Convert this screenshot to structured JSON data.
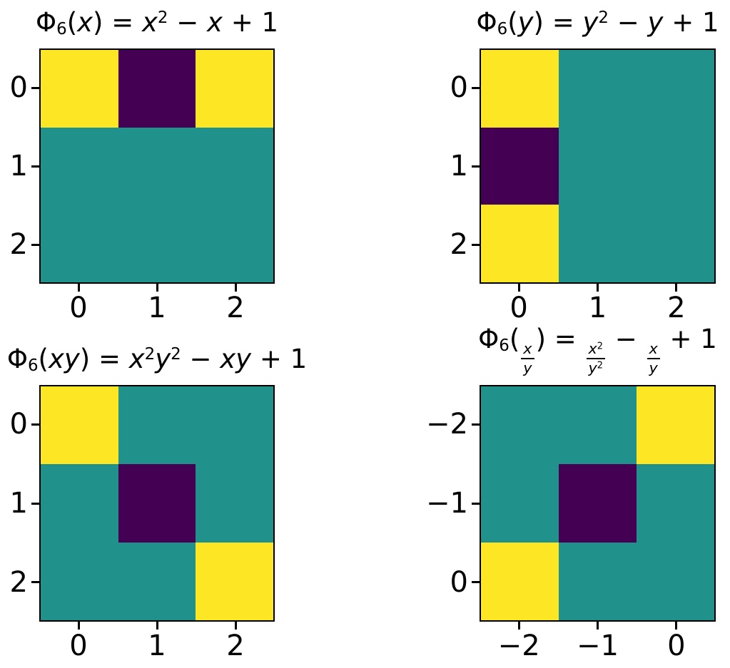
{
  "figure": {
    "background": "#ffffff",
    "encoding": "3x3 heatmaps; cell level 0 = dark purple, 1 = teal, 2 = yellow; value rows listed top-to-bottom, left-to-right",
    "colormap": {
      "name": "viridis (3 levels)",
      "level_colors": [
        "#440154",
        "#21918c",
        "#fde725"
      ]
    },
    "layout": {
      "rows": 2,
      "cols": 2
    }
  },
  "chart_data": [
    {
      "type": "heatmap",
      "title": "Φ₆(x) = x² − x + 1",
      "title_rich": [
        {
          "t": "Φ"
        },
        {
          "t": "6",
          "sub": true
        },
        {
          "t": "("
        },
        {
          "t": "x",
          "it": true
        },
        {
          "t": ")"
        },
        {
          "t": " = "
        },
        {
          "t": "x",
          "it": true
        },
        {
          "t": "2",
          "sup": true
        },
        {
          "t": " − "
        },
        {
          "t": "x",
          "it": true
        },
        {
          "t": " + 1"
        }
      ],
      "xtick_labels": [
        "0",
        "1",
        "2"
      ],
      "ytick_labels": [
        "0",
        "1",
        "2"
      ],
      "values": [
        [
          2,
          0,
          2
        ],
        [
          1,
          1,
          1
        ],
        [
          1,
          1,
          1
        ]
      ],
      "grid": "off",
      "legend": "none"
    },
    {
      "type": "heatmap",
      "title": "Φ₆(y) = y² − y + 1",
      "title_rich": [
        {
          "t": "Φ"
        },
        {
          "t": "6",
          "sub": true
        },
        {
          "t": "("
        },
        {
          "t": "y",
          "it": true
        },
        {
          "t": ")"
        },
        {
          "t": " = "
        },
        {
          "t": "y",
          "it": true
        },
        {
          "t": "2",
          "sup": true
        },
        {
          "t": " − "
        },
        {
          "t": "y",
          "it": true
        },
        {
          "t": " + 1"
        }
      ],
      "xtick_labels": [
        "0",
        "1",
        "2"
      ],
      "ytick_labels": [
        "0",
        "1",
        "2"
      ],
      "values": [
        [
          2,
          1,
          1
        ],
        [
          0,
          1,
          1
        ],
        [
          2,
          1,
          1
        ]
      ],
      "grid": "off",
      "legend": "none"
    },
    {
      "type": "heatmap",
      "title": "Φ₆(xy) = x²y² − xy + 1",
      "title_rich": [
        {
          "t": "Φ"
        },
        {
          "t": "6",
          "sub": true
        },
        {
          "t": "("
        },
        {
          "t": "xy",
          "it": true
        },
        {
          "t": ")"
        },
        {
          "t": " = "
        },
        {
          "t": "x",
          "it": true
        },
        {
          "t": "2",
          "sup": true
        },
        {
          "t": "y",
          "it": true
        },
        {
          "t": "2",
          "sup": true
        },
        {
          "t": " − "
        },
        {
          "t": "xy",
          "it": true
        },
        {
          "t": " + 1"
        }
      ],
      "xtick_labels": [
        "0",
        "1",
        "2"
      ],
      "ytick_labels": [
        "0",
        "1",
        "2"
      ],
      "values": [
        [
          2,
          1,
          1
        ],
        [
          1,
          0,
          1
        ],
        [
          1,
          1,
          2
        ]
      ],
      "grid": "off",
      "legend": "none"
    },
    {
      "type": "heatmap",
      "title": "Φ₆(x/y) = x²/y² − x/y + 1",
      "title_rich": [
        {
          "t": "Φ"
        },
        {
          "t": "6",
          "sub": true
        },
        {
          "t": "("
        },
        {
          "frac": {
            "num": [
              {
                "t": "x",
                "it": true
              }
            ],
            "den": [
              {
                "t": "y",
                "it": true
              }
            ]
          }
        },
        {
          "t": ")"
        },
        {
          "t": " = "
        },
        {
          "frac": {
            "num": [
              {
                "t": "x",
                "it": true
              },
              {
                "t": "2",
                "sup": true
              }
            ],
            "den": [
              {
                "t": "y",
                "it": true
              },
              {
                "t": "2",
                "sup": true
              }
            ]
          }
        },
        {
          "t": " − "
        },
        {
          "frac": {
            "num": [
              {
                "t": "x",
                "it": true
              }
            ],
            "den": [
              {
                "t": "y",
                "it": true
              }
            ]
          }
        },
        {
          "t": " + 1"
        }
      ],
      "xtick_labels": [
        "−2",
        "−1",
        "0"
      ],
      "ytick_labels": [
        "−2",
        "−1",
        "0"
      ],
      "values": [
        [
          1,
          1,
          2
        ],
        [
          1,
          0,
          1
        ],
        [
          2,
          1,
          1
        ]
      ],
      "grid": "off",
      "legend": "none"
    }
  ]
}
